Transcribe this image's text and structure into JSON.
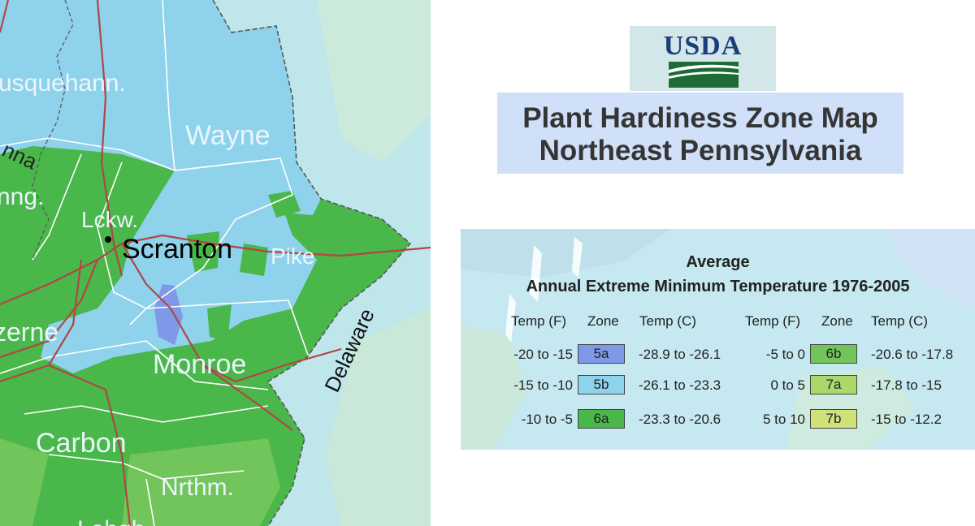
{
  "map": {
    "labels": {
      "susquehanna": "usquehann.",
      "susquehanna_fragment": "nna",
      "wyoming_fragment": "nng.",
      "wayne": "Wayne",
      "lackawanna": "Lckw.",
      "scranton": "Scranton",
      "pike": "Pike",
      "luzerne_fragment": "zerne",
      "monroe": "Monroe",
      "delaware": "Delaware",
      "carbon": "Carbon",
      "northampton": "Nrthm.",
      "lehigh_fragment": "Lehgh"
    },
    "colors": {
      "zone_5a": "#7f98e8",
      "zone_5b": "#8ed2ec",
      "zone_6a": "#49b74a",
      "zone_6b": "#72c55a",
      "outside": "#bfe6ea",
      "road": "#b04646",
      "county_line": "#ffffff",
      "state_line": "#555555"
    }
  },
  "logo": {
    "text": "USDA",
    "colors": {
      "text": "#1c3f7a",
      "field": "#1f6b36"
    }
  },
  "title": {
    "line1": "Plant Hardiness Zone Map",
    "line2": "Northeast Pennsylvania"
  },
  "legend": {
    "heading1": "Average",
    "heading2": "Annual Extreme Minimum Temperature 1976-2005",
    "col_temp_f": "Temp (F)",
    "col_zone": "Zone",
    "col_temp_c": "Temp (C)",
    "rows": [
      {
        "temp_f": "-20 to -15",
        "zone": "5a",
        "temp_c": "-28.9 to -26.1",
        "color": "#7f98e8"
      },
      {
        "temp_f": "-15 to -10",
        "zone": "5b",
        "temp_c": "-26.1 to -23.3",
        "color": "#8ed2ec"
      },
      {
        "temp_f": "-10 to -5",
        "zone": "6a",
        "temp_c": "-23.3 to -20.6",
        "color": "#49b74a"
      },
      {
        "temp_f": "-5 to 0",
        "zone": "6b",
        "temp_c": "-20.6 to -17.8",
        "color": "#72c55a"
      },
      {
        "temp_f": "0 to 5",
        "zone": "7a",
        "temp_c": "-17.8 to -15",
        "color": "#abd86b"
      },
      {
        "temp_f": "5 to 10",
        "zone": "7b",
        "temp_c": "-15 to -12.2",
        "color": "#cfe27a"
      }
    ]
  }
}
